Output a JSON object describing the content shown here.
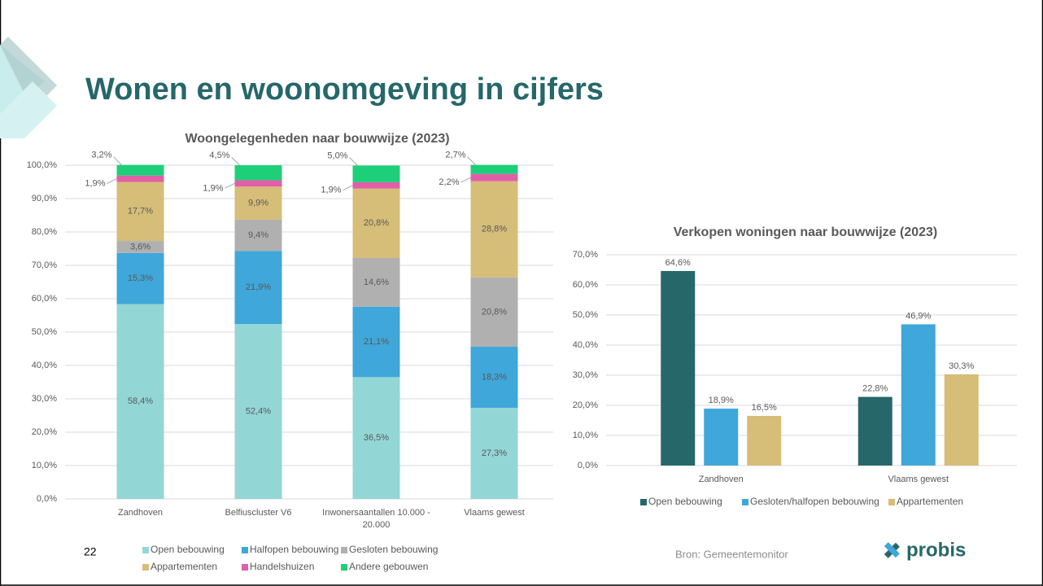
{
  "title": "Wonen en woonomgeving in cijfers",
  "footer": {
    "page": "22",
    "source": "Bron: Gemeentemonitor",
    "logo": "probis"
  },
  "chart_data": [
    {
      "type": "stacked_bar",
      "title": "Woongelegenheden naar bouwwijze (2023)",
      "categories": [
        "Zandhoven",
        "Belfiuscluster V6",
        "Inwonersaantallen 10.000 - 20.000",
        "Vlaams gewest"
      ],
      "series": [
        {
          "name": "Open bebouwing",
          "color": "#93d6d6",
          "values": [
            58.4,
            52.4,
            36.5,
            27.3
          ],
          "value_labels": [
            "58,4%",
            "52,4%",
            "36,5%",
            "27,3%"
          ]
        },
        {
          "name": "Halfopen bebouwing",
          "color": "#3fa7d9",
          "values": [
            15.3,
            21.9,
            21.1,
            18.3
          ],
          "value_labels": [
            "15,3%",
            "21,9%",
            "21,1%",
            "18,3%"
          ]
        },
        {
          "name": "Gesloten bebouwing",
          "color": "#b0b0b0",
          "values": [
            3.6,
            9.4,
            14.6,
            20.8
          ],
          "value_labels": [
            "3,6%",
            "9,4%",
            "14,6%",
            "20,8%"
          ]
        },
        {
          "name": "Appartementen",
          "color": "#d6bd78",
          "values": [
            17.7,
            9.9,
            20.8,
            28.8
          ],
          "value_labels": [
            "17,7%",
            "9,9%",
            "20,8%",
            "28,8%"
          ]
        },
        {
          "name": "Handelshuizen",
          "color": "#e05fa8",
          "values": [
            1.9,
            1.9,
            1.9,
            2.2
          ],
          "value_labels": [
            "1,9%",
            "1,9%",
            "1,9%",
            "2,2%"
          ]
        },
        {
          "name": "Andere gebouwen",
          "color": "#1ecf7a",
          "values": [
            3.2,
            4.5,
            5.0,
            2.7
          ],
          "value_labels": [
            "3,2%",
            "4,5%",
            "5,0%",
            "2,7%"
          ]
        }
      ],
      "ylim": [
        0,
        100
      ],
      "yticks": [
        {
          "value": 0,
          "label": "0,0%"
        },
        {
          "value": 10,
          "label": "10,0%"
        },
        {
          "value": 20,
          "label": "20,0%"
        },
        {
          "value": 30,
          "label": "30,0%"
        },
        {
          "value": 40,
          "label": "40,0%"
        },
        {
          "value": 50,
          "label": "50,0%"
        },
        {
          "value": 60,
          "label": "60,0%"
        },
        {
          "value": 70,
          "label": "70,0%"
        },
        {
          "value": 80,
          "label": "80,0%"
        },
        {
          "value": 90,
          "label": "90,0%"
        },
        {
          "value": 100,
          "label": "100,0%"
        }
      ],
      "grid": true,
      "legend": "bottom"
    },
    {
      "type": "bar",
      "title": "Verkopen woningen naar bouwwijze (2023)",
      "categories": [
        "Zandhoven",
        "Vlaams gewest"
      ],
      "series": [
        {
          "name": "Open bebouwing",
          "color": "#26676a",
          "values": [
            64.6,
            22.8
          ],
          "value_labels": [
            "64,6%",
            "22,8%"
          ]
        },
        {
          "name": "Gesloten/halfopen bebouwing",
          "color": "#3fa7d9",
          "values": [
            18.9,
            46.9
          ],
          "value_labels": [
            "18,9%",
            "46,9%"
          ]
        },
        {
          "name": "Appartementen",
          "color": "#d6bd78",
          "values": [
            16.5,
            30.3
          ],
          "value_labels": [
            "16,5%",
            "30,3%"
          ]
        }
      ],
      "ylim": [
        0,
        70
      ],
      "yticks": [
        {
          "value": 0,
          "label": "0,0%"
        },
        {
          "value": 10,
          "label": "10,0%"
        },
        {
          "value": 20,
          "label": "20,0%"
        },
        {
          "value": 30,
          "label": "30,0%"
        },
        {
          "value": 40,
          "label": "40,0%"
        },
        {
          "value": 50,
          "label": "50,0%"
        },
        {
          "value": 60,
          "label": "60,0%"
        },
        {
          "value": 70,
          "label": "70,0%"
        }
      ],
      "grid": true,
      "legend": "bottom"
    }
  ]
}
